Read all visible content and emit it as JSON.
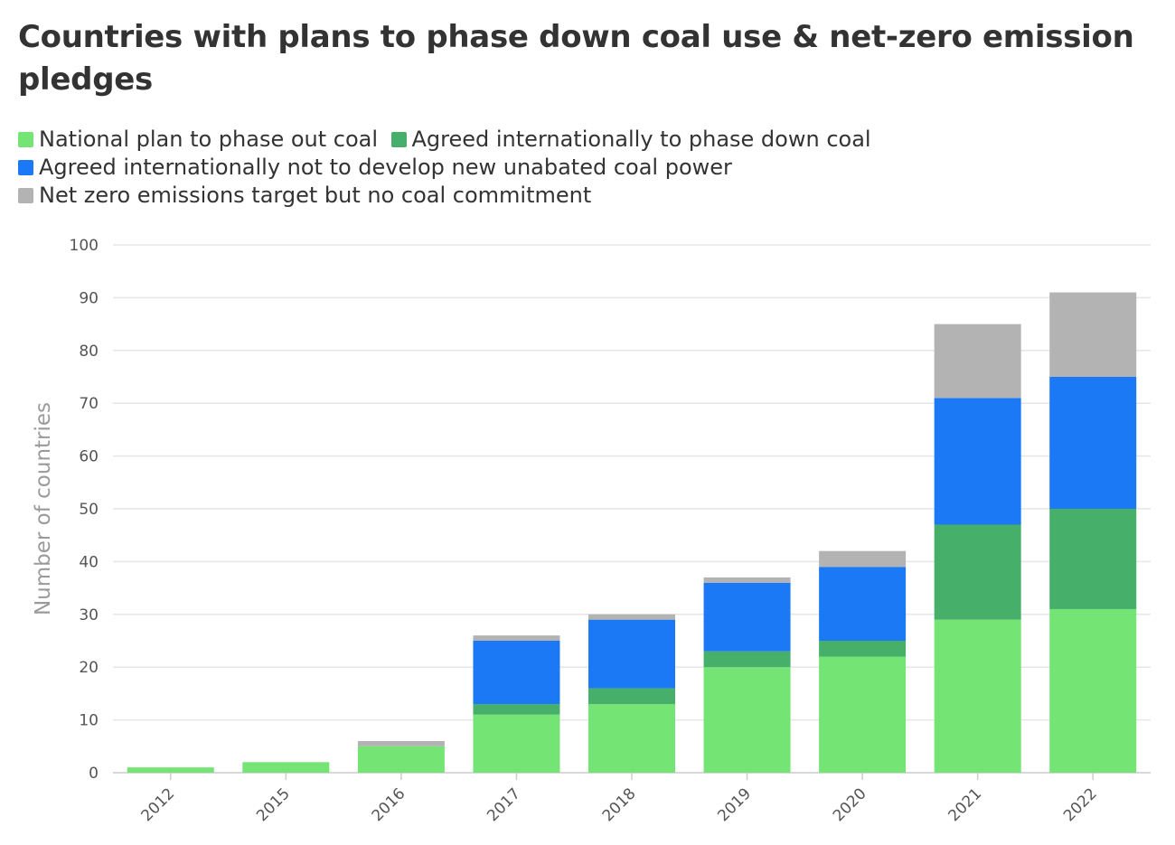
{
  "chart_data": {
    "type": "bar",
    "stacked": true,
    "title": "Countries with plans to phase down coal use & net-zero emission pledges",
    "xlabel": "",
    "ylabel": "Number of countries",
    "ylim": [
      0,
      100
    ],
    "yticks": [
      0,
      10,
      20,
      30,
      40,
      50,
      60,
      70,
      80,
      90,
      100
    ],
    "grid": true,
    "legend_position": "top-left",
    "categories": [
      "2012",
      "2015",
      "2016",
      "2017",
      "2018",
      "2019",
      "2020",
      "2021",
      "2022"
    ],
    "series": [
      {
        "name": "National plan to phase out coal",
        "color": "#74e475",
        "values": [
          1,
          2,
          5,
          11,
          13,
          20,
          22,
          29,
          31
        ]
      },
      {
        "name": "Agreed internationally to phase down coal",
        "color": "#46b06a",
        "values": [
          0,
          0,
          0,
          2,
          3,
          3,
          3,
          18,
          19
        ]
      },
      {
        "name": "Agreed internationally not to develop new unabated coal power",
        "color": "#1c79f5",
        "values": [
          0,
          0,
          0,
          12,
          13,
          13,
          14,
          24,
          25
        ]
      },
      {
        "name": "Net zero emissions target but no coal commitment",
        "color": "#b3b3b3",
        "values": [
          0,
          0,
          1,
          1,
          1,
          1,
          3,
          14,
          16
        ]
      }
    ]
  }
}
